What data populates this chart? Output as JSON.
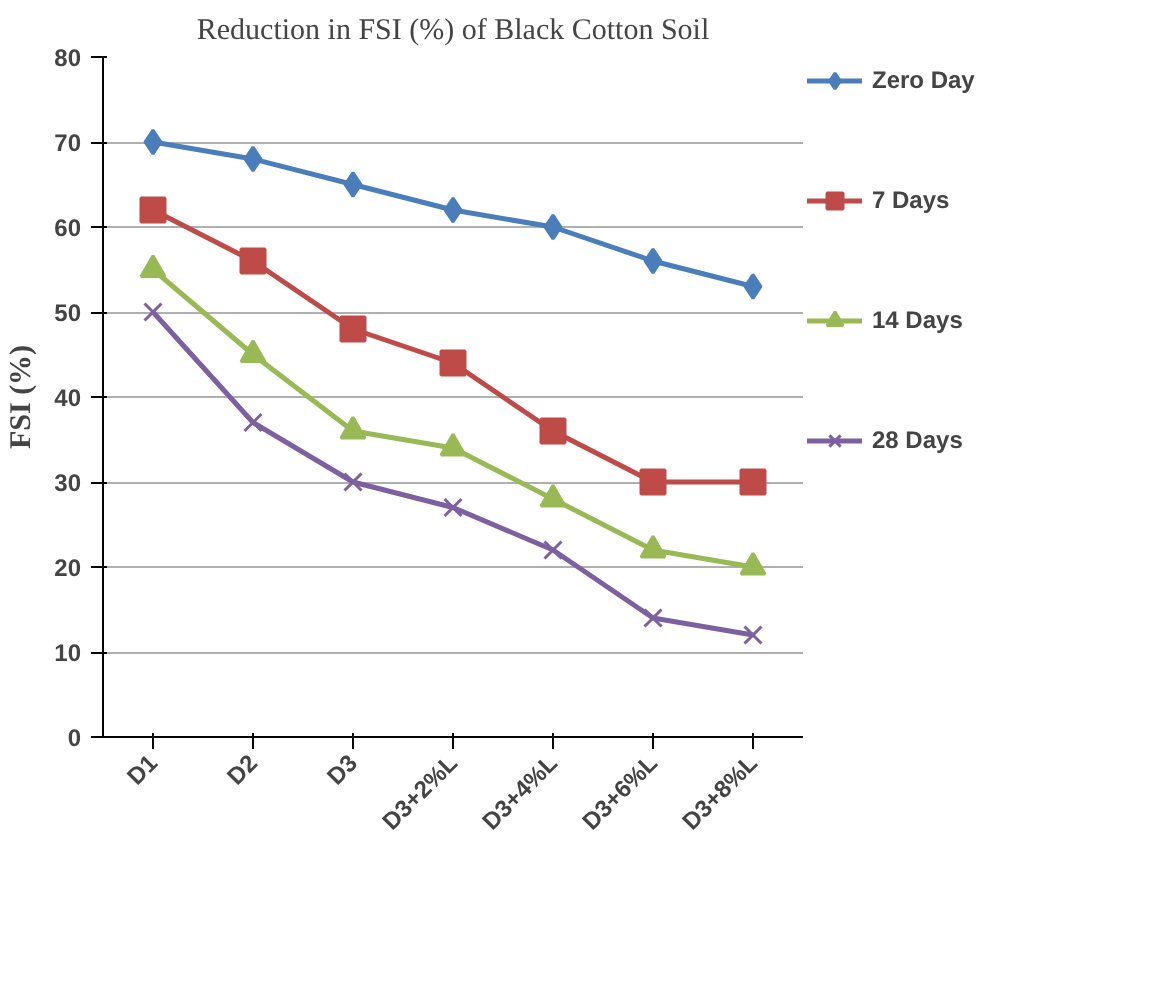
{
  "chart_data": {
    "type": "line",
    "title": "Reduction in FSI (%) of Black Cotton Soil",
    "ylabel": "FSI (%)",
    "categories": [
      "D1",
      "D2",
      "D3",
      "D3+2%L",
      "D3+4%L",
      "D3+6%L",
      "D3+8%L"
    ],
    "series": [
      {
        "name": "Zero Day",
        "color": "#4a7ebb",
        "marker": "diamond",
        "values": [
          70,
          68,
          65,
          62,
          60,
          56,
          53
        ]
      },
      {
        "name": "7 Days",
        "color": "#be4b48",
        "marker": "square",
        "values": [
          62,
          56,
          48,
          44,
          36,
          30,
          30
        ]
      },
      {
        "name": "14 Days",
        "color": "#98b954",
        "marker": "triangle",
        "values": [
          55,
          45,
          36,
          34,
          28,
          22,
          20
        ]
      },
      {
        "name": "28 Days",
        "color": "#7d60a0",
        "marker": "x",
        "values": [
          50,
          37,
          30,
          27,
          22,
          14,
          12
        ]
      }
    ],
    "ylim": [
      0,
      80
    ],
    "yticks": [
      0,
      10,
      20,
      30,
      40,
      50,
      60,
      70,
      80
    ],
    "grid": "y",
    "legend": "right"
  }
}
